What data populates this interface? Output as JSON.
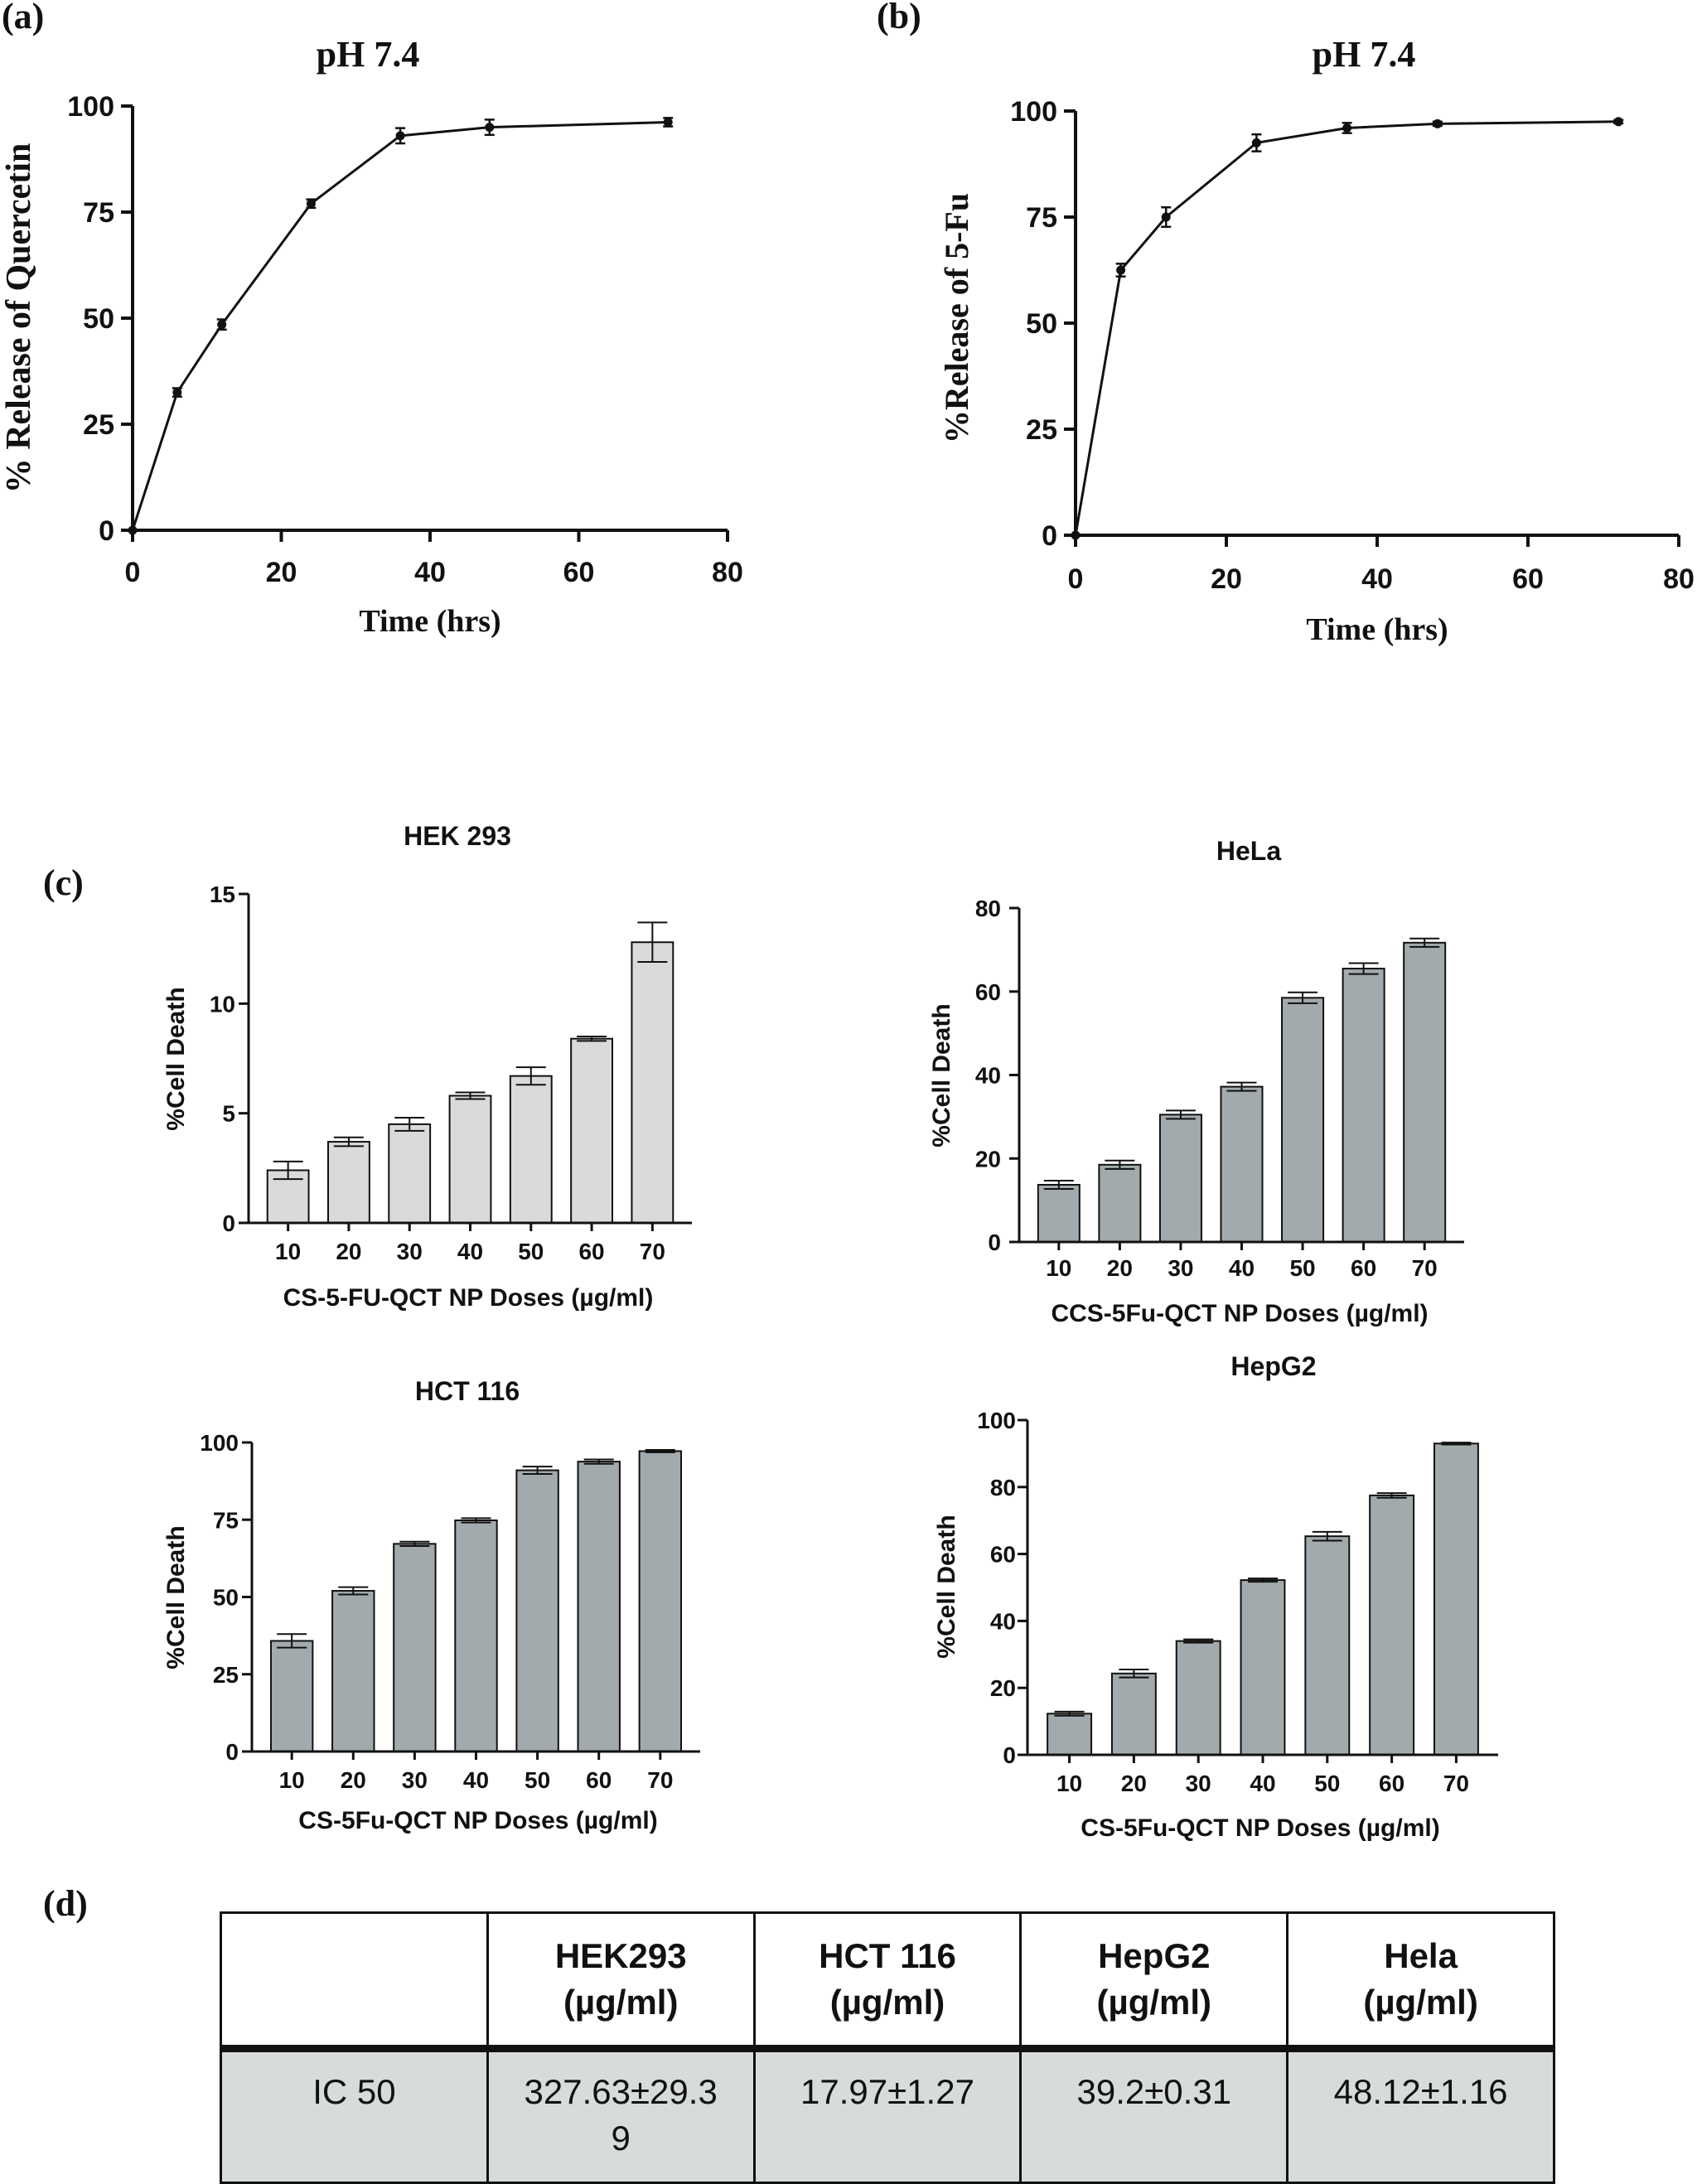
{
  "panel_labels": {
    "a": "(a)",
    "b": "(b)",
    "c": "(c)",
    "d": "(d)"
  },
  "chart_data": [
    {
      "id": "a",
      "type": "line",
      "title": "pH 7.4",
      "xlabel": "Time (hrs)",
      "ylabel": "% Release of Quercetin",
      "xlim": [
        0,
        80
      ],
      "ylim": [
        0,
        100
      ],
      "xticks": [
        0,
        20,
        40,
        60,
        80
      ],
      "yticks": [
        0,
        25,
        50,
        75,
        100
      ],
      "x": [
        0,
        6,
        12,
        24,
        36,
        48,
        72
      ],
      "y": [
        0,
        32.5,
        48.5,
        77,
        93,
        95,
        96.2
      ],
      "err": [
        0,
        1.0,
        1.2,
        1.0,
        1.8,
        1.8,
        1.0
      ]
    },
    {
      "id": "b",
      "type": "line",
      "title": "pH 7.4",
      "xlabel": "Time (hrs)",
      "ylabel": "%Release of 5-Fu",
      "xlim": [
        0,
        80
      ],
      "ylim": [
        0,
        100
      ],
      "xticks": [
        0,
        20,
        40,
        60,
        80
      ],
      "yticks": [
        0,
        25,
        50,
        75,
        100
      ],
      "x": [
        0,
        6,
        12,
        24,
        36,
        48,
        72
      ],
      "y": [
        0,
        62.5,
        75,
        92.5,
        96,
        97,
        97.5
      ],
      "err": [
        0,
        1.5,
        2.3,
        2.0,
        1.2,
        0.5,
        0.4
      ]
    },
    {
      "id": "hek",
      "type": "bar",
      "title": "HEK 293",
      "xlabel": "CS-5-FU-QCT NP Doses (µg/ml)",
      "ylabel": "%Cell Death",
      "categories": [
        "10",
        "20",
        "30",
        "40",
        "50",
        "60",
        "70"
      ],
      "values": [
        2.4,
        3.7,
        4.5,
        5.8,
        6.7,
        8.4,
        12.8
      ],
      "err": [
        0.4,
        0.2,
        0.3,
        0.15,
        0.4,
        0.1,
        0.9
      ],
      "ylim": [
        0,
        15
      ],
      "yticks": [
        0,
        5,
        10,
        15
      ],
      "bar_color": "#d9dbdb"
    },
    {
      "id": "hela",
      "type": "bar",
      "title": "HeLa",
      "xlabel": "CCS-5Fu-QCT NP Doses (µg/ml)",
      "ylabel": "%Cell Death",
      "categories": [
        "10",
        "20",
        "30",
        "40",
        "50",
        "60",
        "70"
      ],
      "values": [
        13.7,
        18.5,
        30.5,
        37.2,
        58.5,
        65.5,
        71.7
      ],
      "err": [
        1.0,
        1.0,
        1.0,
        1.0,
        1.3,
        1.3,
        1.0
      ],
      "ylim": [
        0,
        80
      ],
      "yticks": [
        0,
        20,
        40,
        60,
        80
      ],
      "bar_color": "#a2aaad"
    },
    {
      "id": "hct",
      "type": "bar",
      "title": "HCT 116",
      "xlabel": "CS-5Fu-QCT NP Doses (µg/ml)",
      "ylabel": "%Cell Death",
      "categories": [
        "10",
        "20",
        "30",
        "40",
        "50",
        "60",
        "70"
      ],
      "values": [
        35.8,
        52.0,
        67.2,
        74.8,
        91.0,
        93.8,
        97.2
      ],
      "err": [
        2.2,
        1.2,
        0.7,
        0.7,
        1.2,
        0.7,
        0.4
      ],
      "ylim": [
        0,
        100
      ],
      "yticks": [
        0,
        25,
        50,
        75,
        100
      ],
      "bar_color": "#a2aaad"
    },
    {
      "id": "hepg2",
      "type": "bar",
      "title": "HepG2",
      "xlabel": "CS-5Fu-QCT NP Doses (µg/ml)",
      "ylabel": "%Cell Death",
      "categories": [
        "10",
        "20",
        "30",
        "40",
        "50",
        "60",
        "70"
      ],
      "values": [
        12.3,
        24.3,
        34.0,
        52.2,
        65.3,
        77.5,
        93.0
      ],
      "err": [
        0.6,
        1.2,
        0.5,
        0.5,
        1.3,
        0.7,
        0.3
      ],
      "ylim": [
        0,
        100
      ],
      "yticks": [
        0,
        20,
        40,
        60,
        80,
        100
      ],
      "bar_color": "#a2aaad"
    }
  ],
  "table": {
    "headers": [
      [
        "",
        ""
      ],
      [
        "HEK293",
        "(µg/ml)"
      ],
      [
        "HCT 116",
        "(µg/ml)"
      ],
      [
        "HepG2",
        "(µg/ml)"
      ],
      [
        "Hela",
        "(µg/ml)"
      ]
    ],
    "row": [
      "IC 50",
      "327.63±29.39",
      "17.97±1.27",
      "39.2±0.31",
      "48.12±1.16"
    ],
    "row_bg": "#d7dcd9"
  }
}
